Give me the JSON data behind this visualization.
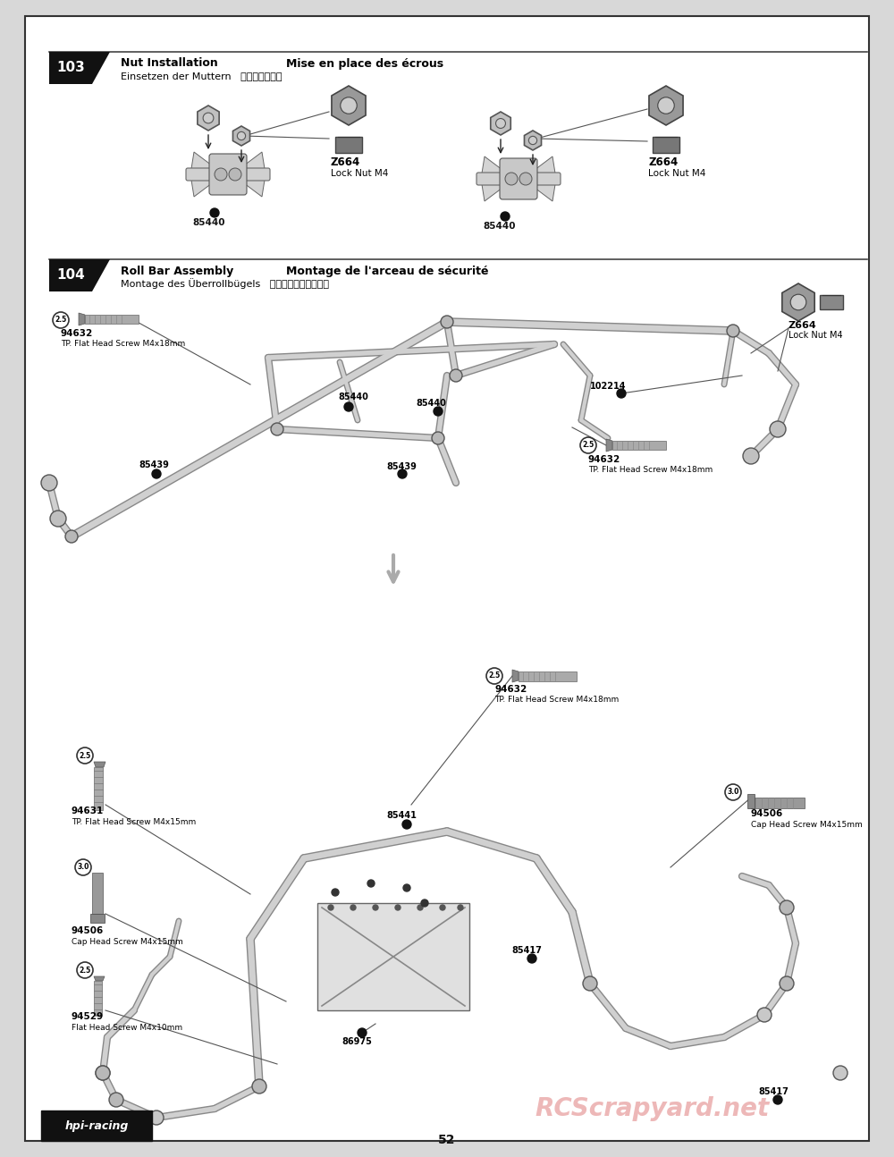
{
  "page_bg": "#d8d8d8",
  "content_bg": "#ffffff",
  "border_color": "#000000",
  "page_number": "52",
  "watermark_text": "RCScrapyard.net",
  "watermark_color": "#e8a0a0",
  "logo_text": "hpi racing",
  "s103_number": "103",
  "s103_title_en": "Nut Installation",
  "s103_title_fr": "Mise en place des écrous",
  "s103_title_de": "Einsetzen der Muttern",
  "s103_title_jp": "ナットの取付け",
  "s104_number": "104",
  "s104_title_en": "Roll Bar Assembly",
  "s104_title_fr": "Montage de l'arceau de sécurité",
  "s104_title_de": "Montage des Überrollbügels",
  "s104_title_jp": "ロールバーの組み立て"
}
